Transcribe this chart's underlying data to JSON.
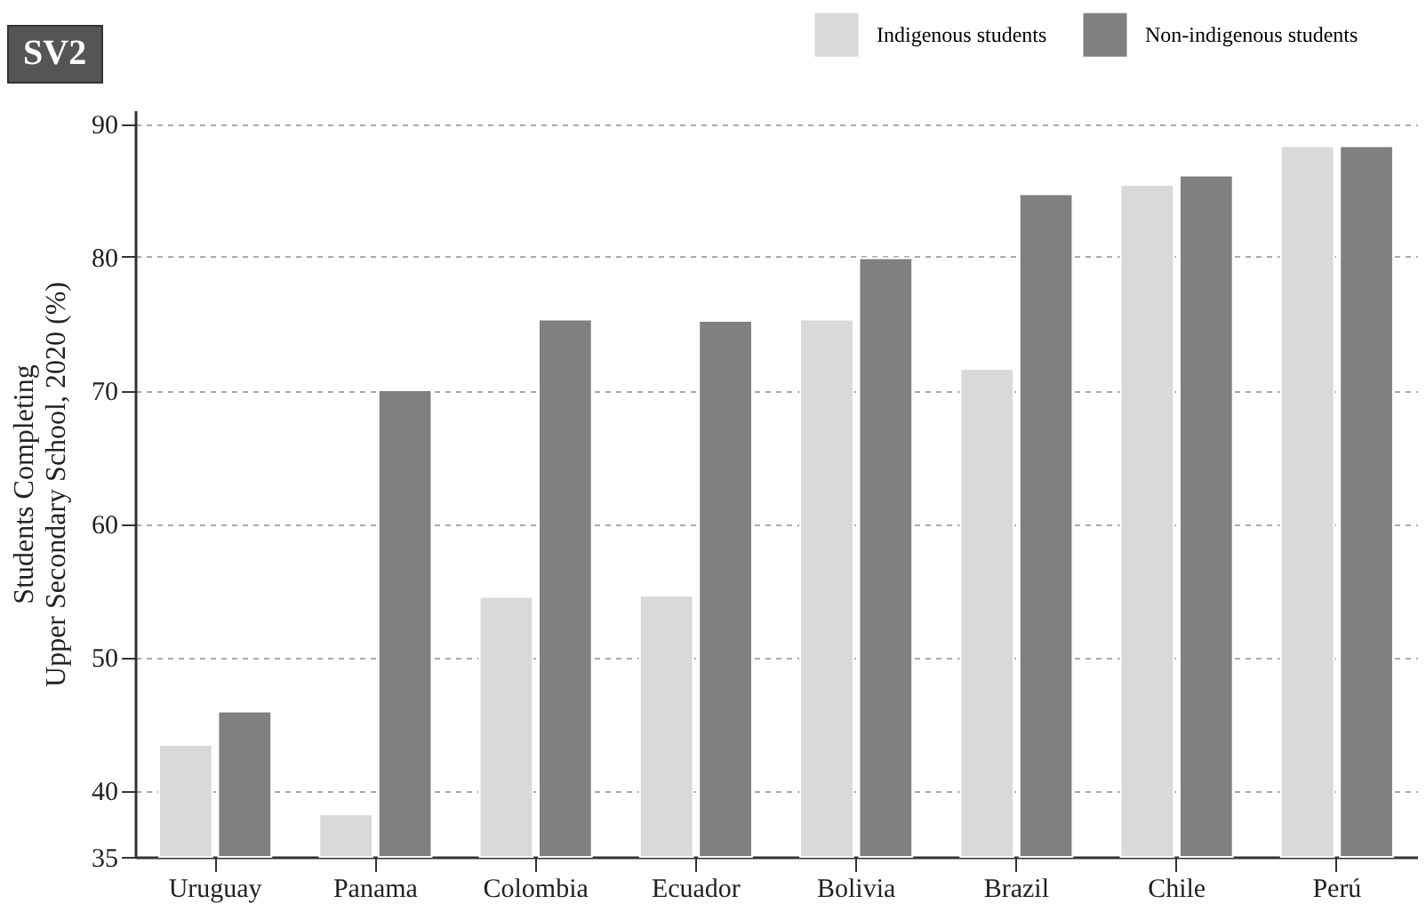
{
  "chart_data": {
    "type": "bar",
    "title": "SV2",
    "ylabel": "Students Completing\nUpper Secondary School, 2020 (%)",
    "categories": [
      "Uruguay",
      "Panama",
      "Colombia",
      "Ecuador",
      "Bolivia",
      "Brazil",
      "Chile",
      "Perú"
    ],
    "series": [
      {
        "name": "Indigenous students",
        "color": "#d9d9d9",
        "values": [
          43.4,
          38.2,
          54.5,
          54.6,
          75.3,
          71.6,
          85.4,
          88.3
        ]
      },
      {
        "name": "Non-indigenous students",
        "color": "#808080",
        "values": [
          45.9,
          70.0,
          75.3,
          75.2,
          79.9,
          84.7,
          86.1,
          88.3
        ]
      }
    ],
    "ylim": [
      35,
      91
    ],
    "yticks": [
      35,
      40,
      50,
      60,
      70,
      80,
      90
    ],
    "grid": "y",
    "legend": "top right"
  }
}
